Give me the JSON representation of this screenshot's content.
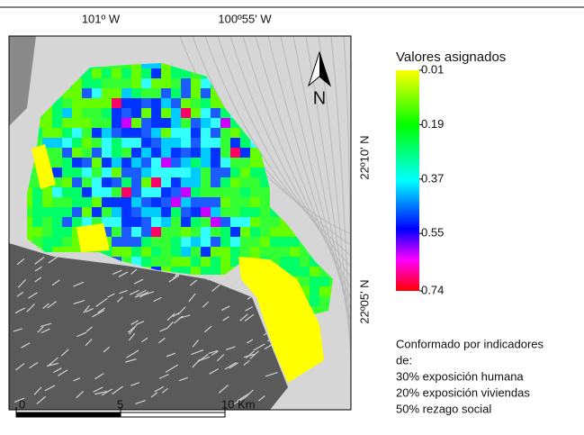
{
  "map": {
    "top_coordinates": [
      "101º W",
      "100º55' W"
    ],
    "side_coordinates": [
      "22º10' N",
      "22º05' N"
    ],
    "north_label": "N",
    "legend": {
      "title": "Valores asignados",
      "ticks": [
        0.01,
        0.19,
        0.37,
        0.55,
        0.74
      ]
    },
    "scale_bar": {
      "ticks": [
        0,
        5,
        {
          "value": 10,
          "label": "10 Km"
        }
      ]
    },
    "note": [
      "Conformado  por indicadores",
      "de:",
      "30% exposición humana",
      "20% exposición viviendas",
      "50% rezago social"
    ]
  }
}
